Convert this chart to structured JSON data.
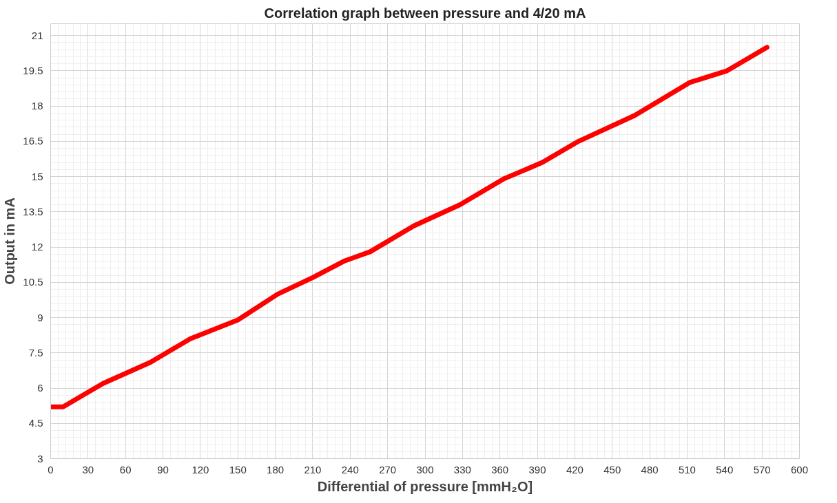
{
  "chart_data": {
    "type": "line",
    "title": "Correlation graph between pressure and 4/20 mA",
    "xlabel": "Differential of pressure [mmH₂O]",
    "ylabel": "Output in mA",
    "series": [
      {
        "color": "#ff0000",
        "x": [
          0,
          10,
          42,
          80,
          112,
          150,
          182,
          210,
          235,
          256,
          291,
          328,
          363,
          394,
          423,
          468,
          512,
          542,
          574
        ],
        "values": [
          5.2,
          5.2,
          6.2,
          7.1,
          8.1,
          8.9,
          10.0,
          10.7,
          11.4,
          11.8,
          12.9,
          13.8,
          14.9,
          15.6,
          16.5,
          17.6,
          19.0,
          19.5,
          20.5
        ]
      }
    ],
    "xlim": [
      0,
      600
    ],
    "ylim": [
      3,
      21.5
    ],
    "xticks": [
      0,
      30,
      60,
      90,
      120,
      150,
      180,
      210,
      240,
      270,
      300,
      330,
      360,
      390,
      420,
      450,
      480,
      510,
      540,
      570,
      600
    ],
    "yticks": [
      3,
      4.5,
      6,
      7.5,
      9,
      10.5,
      12,
      13.5,
      15,
      16.5,
      18,
      19.5,
      21
    ],
    "grid": true,
    "marker": "none",
    "line_style": "solid"
  }
}
